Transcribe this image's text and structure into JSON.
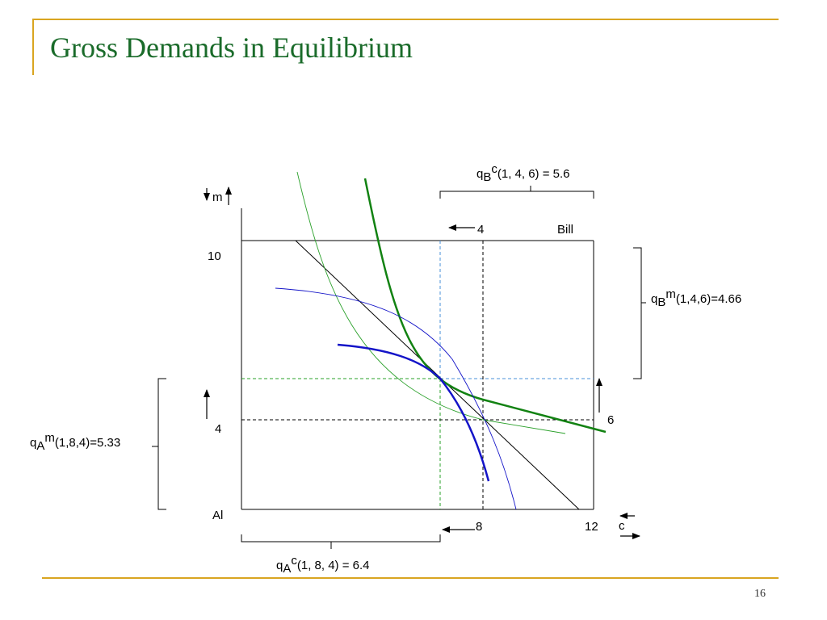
{
  "slide": {
    "title": "Gross Demands in Equilibrium",
    "page_number": "16",
    "frame_color": "#d9a520",
    "title_color": "#1a6b2a"
  },
  "edgeworth_box": {
    "owners": {
      "bottom_left": "Al",
      "top_right": "Bill"
    },
    "axis_labels": {
      "m": "m",
      "c": "c"
    },
    "tick_labels": {
      "bottom_8": "8",
      "bottom_12": "12",
      "top_4": "4",
      "left_10": "10",
      "left_4": "4",
      "right_6": "6"
    },
    "annotations": {
      "qBc": {
        "q": "q",
        "sub": "B",
        "sup": "c",
        "args": "(1, 4, 6) = 5.6"
      },
      "qBm": {
        "q": "q",
        "sub": "B",
        "sup": "m",
        "args": "(1,4,6)=4.66"
      },
      "qAm": {
        "q": "q",
        "sub": "A",
        "sup": "m",
        "args": "(1,8,4)=5.33"
      },
      "qAc": {
        "q": "q",
        "sub": "A",
        "sup": "c",
        "args": "(1, 8, 4) = 6.4"
      }
    },
    "colors": {
      "bill_indifference": "#128212",
      "al_indifference": "#1414c8",
      "budget_line": "#000000",
      "green_guides": "#2aa02a",
      "blue_guides": "#4a90d9"
    }
  }
}
